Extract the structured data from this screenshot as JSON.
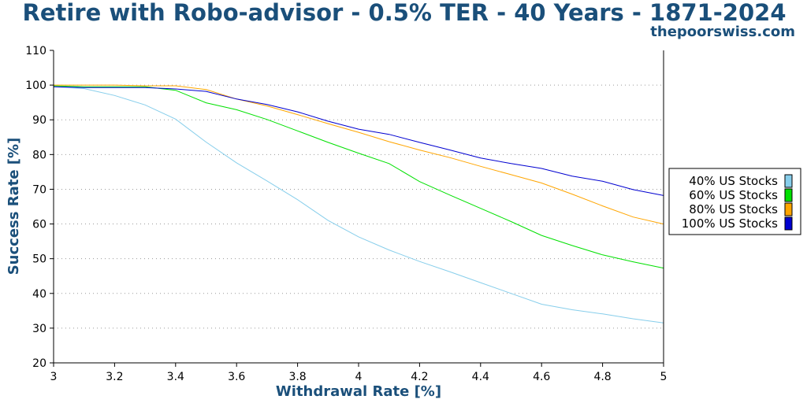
{
  "chart_data": {
    "type": "line",
    "title": "Retire with Robo-advisor - 0.5% TER - 40 Years - 1871-2024",
    "source": "thepoorswiss.com",
    "xlabel": "Withdrawal Rate [%]",
    "ylabel": "Success Rate [%]",
    "xlim": [
      3,
      5
    ],
    "ylim": [
      20,
      110
    ],
    "x_ticks": [
      "3",
      "3.2",
      "3.4",
      "3.6",
      "3.8",
      "4",
      "4.2",
      "4.4",
      "4.6",
      "4.8",
      "5"
    ],
    "y_ticks": [
      "20",
      "30",
      "40",
      "50",
      "60",
      "70",
      "80",
      "90",
      "100",
      "110"
    ],
    "grid": "horizontal dotted",
    "legend_position": "right",
    "x": [
      3.0,
      3.1,
      3.2,
      3.3,
      3.4,
      3.5,
      3.6,
      3.7,
      3.8,
      3.9,
      4.0,
      4.1,
      4.2,
      4.3,
      4.4,
      4.5,
      4.6,
      4.7,
      4.8,
      4.9,
      5.0
    ],
    "series": [
      {
        "name": "40% US Stocks",
        "color": "#87ceeb",
        "values": [
          99.5,
          99.0,
          97.0,
          94.3,
          90.2,
          83.6,
          77.6,
          72.4,
          67.0,
          61.0,
          56.3,
          52.5,
          49.2,
          46.2,
          43.1,
          40.0,
          36.9,
          35.3,
          34.1,
          32.7,
          31.5
        ]
      },
      {
        "name": "60% US Stocks",
        "color": "#00e000",
        "values": [
          99.8,
          99.5,
          99.5,
          99.5,
          98.5,
          94.9,
          92.9,
          90.1,
          86.8,
          83.5,
          80.4,
          77.4,
          72.2,
          68.3,
          64.5,
          60.7,
          56.7,
          53.8,
          51.1,
          49.1,
          47.3
        ]
      },
      {
        "name": "80% US Stocks",
        "color": "#ffa500",
        "values": [
          100.0,
          100.0,
          100.0,
          99.8,
          99.8,
          98.7,
          96.0,
          94.0,
          91.5,
          88.9,
          86.4,
          83.7,
          81.3,
          79.1,
          76.6,
          74.2,
          71.8,
          68.6,
          65.2,
          62.0,
          60.0
        ]
      },
      {
        "name": "100% US Stocks",
        "color": "#0000d0",
        "values": [
          99.5,
          99.3,
          99.3,
          99.3,
          98.9,
          98.2,
          96.0,
          94.4,
          92.3,
          89.6,
          87.3,
          85.8,
          83.5,
          81.3,
          79.0,
          77.4,
          76.0,
          73.8,
          72.3,
          69.9,
          68.2
        ]
      }
    ]
  }
}
